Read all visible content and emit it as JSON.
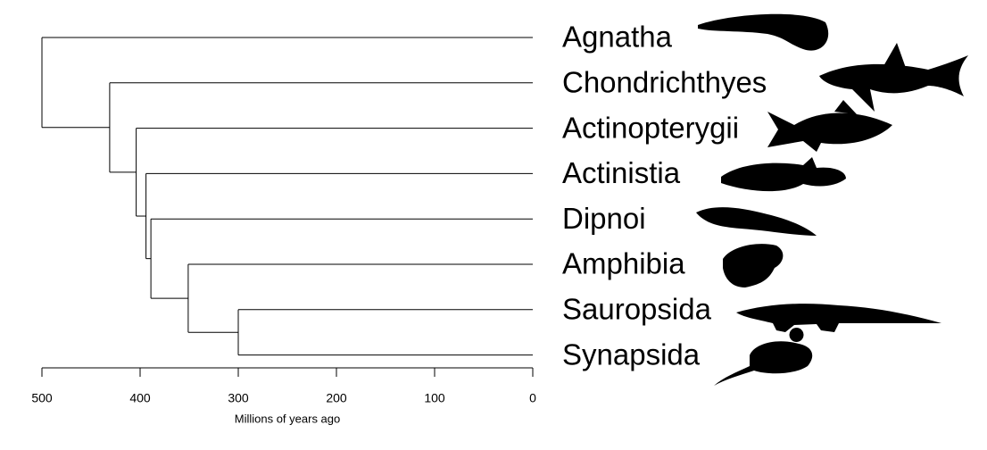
{
  "chart_data": {
    "type": "dendrogram",
    "x_label": "Millions of years ago",
    "xlim": [
      500,
      0
    ],
    "xticks": [
      500,
      400,
      300,
      200,
      100,
      0
    ],
    "color": "#000000",
    "tree": {
      "age": 500,
      "children": [
        {
          "name": "Agnatha"
        },
        {
          "age": 431,
          "children": [
            {
              "name": "Chondrichthyes"
            },
            {
              "age": 404,
              "children": [
                {
                  "name": "Actinopterygii"
                },
                {
                  "age": 394,
                  "children": [
                    {
                      "name": "Actinistia"
                    },
                    {
                      "age": 389,
                      "children": [
                        {
                          "name": "Dipnoi"
                        },
                        {
                          "age": 351,
                          "children": [
                            {
                              "name": "Amphibia"
                            },
                            {
                              "age": 300,
                              "children": [
                                {
                                  "name": "Sauropsida"
                                },
                                {
                                  "name": "Synapsida"
                                }
                              ]
                            }
                          ]
                        }
                      ]
                    }
                  ]
                }
              ]
            }
          ]
        }
      ]
    }
  }
}
